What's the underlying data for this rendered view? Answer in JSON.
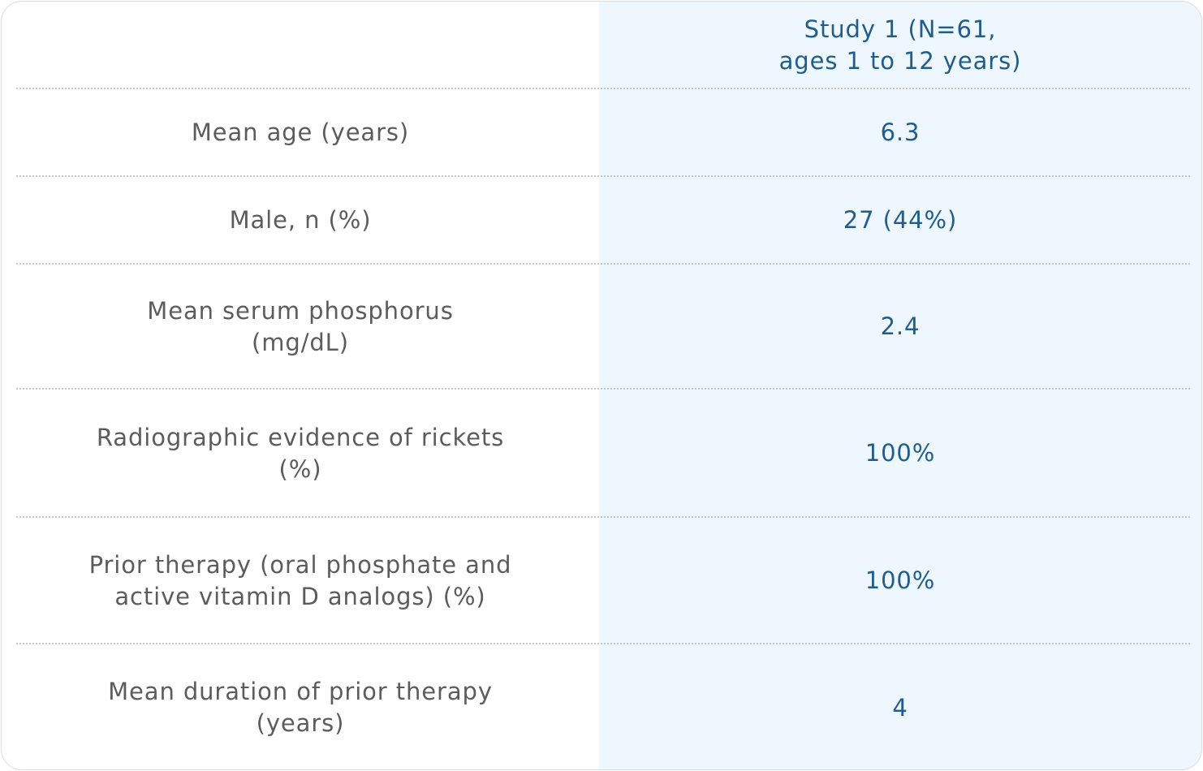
{
  "table": {
    "header": {
      "label": "",
      "study_line1": "Study 1 (N=61,",
      "study_line2": "ages 1 to 12 years)"
    },
    "rows": [
      {
        "label_line1": "Mean age (years)",
        "label_line2": "",
        "value": "6.3"
      },
      {
        "label_line1": "Male, n (%)",
        "label_line2": "",
        "value": "27 (44%)"
      },
      {
        "label_line1": "Mean serum phosphorus",
        "label_line2": "(mg/dL)",
        "value": "2.4"
      },
      {
        "label_line1": "Radiographic evidence of rickets",
        "label_line2": "(%)",
        "value": "100%"
      },
      {
        "label_line1": "Prior therapy (oral phosphate and",
        "label_line2": "active vitamin D analogs) (%)",
        "value": "100%"
      },
      {
        "label_line1": "Mean duration of prior therapy",
        "label_line2": "(years)",
        "value": "4"
      }
    ]
  },
  "colors": {
    "label_text": "#5c5c5c",
    "value_text": "#1f5d8e",
    "value_column_bg": "#edf7fd",
    "divider": "#c2c8cf",
    "border": "#d9dde2"
  }
}
